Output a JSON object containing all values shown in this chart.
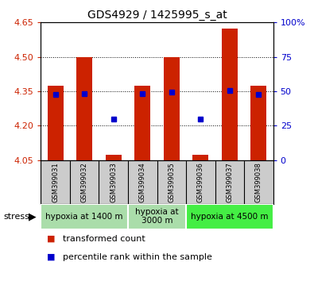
{
  "title": "GDS4929 / 1425995_s_at",
  "samples": [
    "GSM399031",
    "GSM399032",
    "GSM399033",
    "GSM399034",
    "GSM399035",
    "GSM399036",
    "GSM399037",
    "GSM399038"
  ],
  "transformed_count": [
    4.375,
    4.5,
    4.075,
    4.375,
    4.5,
    4.075,
    4.625,
    4.375
  ],
  "percentile_rank_val": [
    4.338,
    4.34,
    4.228,
    4.34,
    4.348,
    4.228,
    4.352,
    4.335
  ],
  "ylim_left": [
    4.05,
    4.65
  ],
  "ylim_right": [
    0,
    100
  ],
  "y_ticks_left": [
    4.05,
    4.2,
    4.35,
    4.5,
    4.65
  ],
  "y_ticks_right": [
    0,
    25,
    50,
    75,
    100
  ],
  "bar_color": "#cc2200",
  "dot_color": "#0000cc",
  "stress_label": "stress",
  "legend_red": "transformed count",
  "legend_blue": "percentile rank within the sample",
  "base_value": 4.05,
  "group_spans": [
    [
      0,
      2,
      "hypoxia at 1400 m",
      "#bbeeaa"
    ],
    [
      3,
      4,
      "hypoxia at\n3000 m",
      "#bbeeaa"
    ],
    [
      5,
      7,
      "hypoxia at 4500 m",
      "#44ee44"
    ]
  ],
  "title_fontsize": 10,
  "tick_fontsize": 8,
  "label_fontsize": 8
}
